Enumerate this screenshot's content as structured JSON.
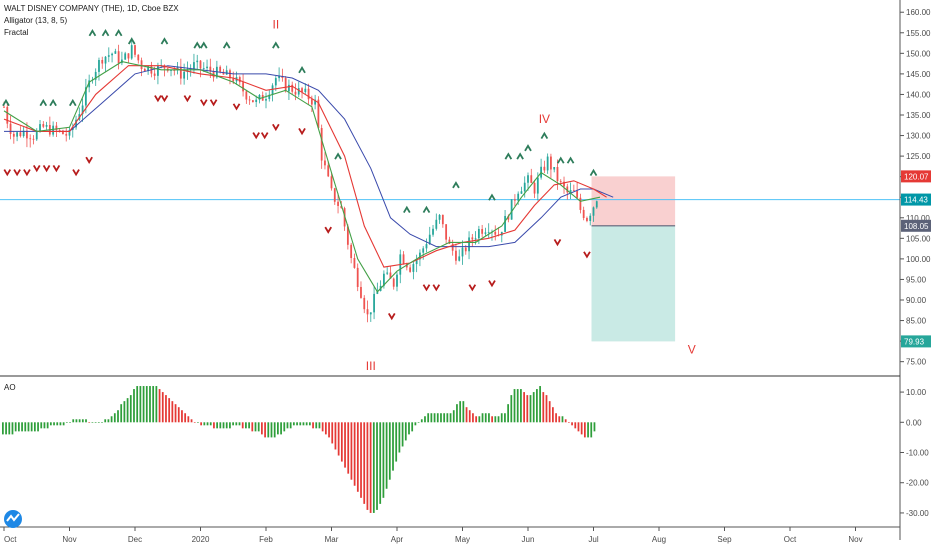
{
  "header": {
    "title": "WALT DISNEY COMPANY (THE), 1D, Cboe BZX",
    "indicator_1": "Alligator (13, 8, 5)",
    "indicator_2": "Fractal"
  },
  "colors": {
    "up": "#26a69a",
    "down": "#ef5350",
    "ao_up": "#2e9e3a",
    "ao_down": "#e53935",
    "jaw": "#3949ab",
    "teeth": "#e53935",
    "lips": "#43a047",
    "stop_zone": "#f8c8c8",
    "target_zone": "#bfe6e1",
    "hline": "#4fc3f7",
    "fractal_up": "#2e7d5b",
    "fractal_down": "#b71c1c"
  },
  "chart_data": [
    {
      "type": "candlestick",
      "title": "WALT DISNEY COMPANY (THE), 1D, Cboe BZX",
      "xlabel": "",
      "ylabel": "",
      "ylim": [
        72,
        162
      ],
      "y_ticks": [
        "160.00",
        "155.00",
        "150.00",
        "145.00",
        "140.00",
        "135.00",
        "130.00",
        "125.00",
        "120.00",
        "115.00",
        "110.00",
        "105.00",
        "100.00",
        "95.00",
        "90.00",
        "85.00",
        "80.00",
        "75.00"
      ],
      "x_ticks": [
        "Oct",
        "Nov",
        "Dec",
        "2020",
        "Feb",
        "Mar",
        "Apr",
        "May",
        "Jun",
        "Jul",
        "Aug",
        "Sep",
        "Oct",
        "Nov"
      ],
      "grid": false,
      "series_close": [
        {
          "t": 0,
          "v": 137
        },
        {
          "t": 0.06,
          "v": 133
        },
        {
          "t": 0.15,
          "v": 130
        },
        {
          "t": 0.3,
          "v": 131
        },
        {
          "t": 0.45,
          "v": 130
        },
        {
          "t": 0.6,
          "v": 132
        },
        {
          "t": 0.8,
          "v": 131
        },
        {
          "t": 1.0,
          "v": 130
        },
        {
          "t": 1.2,
          "v": 138
        },
        {
          "t": 1.35,
          "v": 145
        },
        {
          "t": 1.5,
          "v": 149
        },
        {
          "t": 1.65,
          "v": 150
        },
        {
          "t": 1.8,
          "v": 148
        },
        {
          "t": 1.95,
          "v": 151
        },
        {
          "t": 2.1,
          "v": 147
        },
        {
          "t": 2.3,
          "v": 146
        },
        {
          "t": 2.5,
          "v": 147
        },
        {
          "t": 2.7,
          "v": 145
        },
        {
          "t": 2.9,
          "v": 147
        },
        {
          "t": 3.1,
          "v": 146
        },
        {
          "t": 3.3,
          "v": 145
        },
        {
          "t": 3.5,
          "v": 144
        },
        {
          "t": 3.7,
          "v": 140
        },
        {
          "t": 3.85,
          "v": 138
        },
        {
          "t": 4.0,
          "v": 140
        },
        {
          "t": 4.15,
          "v": 144
        },
        {
          "t": 4.3,
          "v": 142
        },
        {
          "t": 4.45,
          "v": 141
        },
        {
          "t": 4.6,
          "v": 140
        },
        {
          "t": 4.75,
          "v": 138
        },
        {
          "t": 4.85,
          "v": 125
        },
        {
          "t": 5.0,
          "v": 116
        },
        {
          "t": 5.15,
          "v": 112
        },
        {
          "t": 5.3,
          "v": 100
        },
        {
          "t": 5.45,
          "v": 92
        },
        {
          "t": 5.55,
          "v": 86
        },
        {
          "t": 5.65,
          "v": 90
        },
        {
          "t": 5.8,
          "v": 96
        },
        {
          "t": 5.95,
          "v": 94
        },
        {
          "t": 6.05,
          "v": 101
        },
        {
          "t": 6.2,
          "v": 98
        },
        {
          "t": 6.35,
          "v": 101
        },
        {
          "t": 6.5,
          "v": 106
        },
        {
          "t": 6.65,
          "v": 110
        },
        {
          "t": 6.8,
          "v": 103
        },
        {
          "t": 6.95,
          "v": 100
        },
        {
          "t": 7.1,
          "v": 104
        },
        {
          "t": 7.25,
          "v": 107
        },
        {
          "t": 7.4,
          "v": 108
        },
        {
          "t": 7.55,
          "v": 106
        },
        {
          "t": 7.7,
          "v": 111
        },
        {
          "t": 7.85,
          "v": 117
        },
        {
          "t": 8.0,
          "v": 119
        },
        {
          "t": 8.1,
          "v": 117
        },
        {
          "t": 8.2,
          "v": 121
        },
        {
          "t": 8.3,
          "v": 124
        },
        {
          "t": 8.4,
          "v": 121
        },
        {
          "t": 8.5,
          "v": 118
        },
        {
          "t": 8.6,
          "v": 116
        },
        {
          "t": 8.7,
          "v": 116
        },
        {
          "t": 8.8,
          "v": 112
        },
        {
          "t": 8.9,
          "v": 110
        },
        {
          "t": 9.0,
          "v": 113
        },
        {
          "t": 9.05,
          "v": 115
        }
      ],
      "alligator": {
        "jaw": [
          {
            "t": 0,
            "v": 131
          },
          {
            "t": 0.5,
            "v": 131
          },
          {
            "t": 1.0,
            "v": 131
          },
          {
            "t": 1.5,
            "v": 138
          },
          {
            "t": 2.0,
            "v": 145
          },
          {
            "t": 2.5,
            "v": 147
          },
          {
            "t": 3.0,
            "v": 146
          },
          {
            "t": 3.5,
            "v": 145
          },
          {
            "t": 4.0,
            "v": 145
          },
          {
            "t": 4.4,
            "v": 144
          },
          {
            "t": 4.8,
            "v": 141
          },
          {
            "t": 5.2,
            "v": 134
          },
          {
            "t": 5.6,
            "v": 122
          },
          {
            "t": 5.9,
            "v": 110
          },
          {
            "t": 6.2,
            "v": 106
          },
          {
            "t": 6.6,
            "v": 103
          },
          {
            "t": 7.0,
            "v": 103
          },
          {
            "t": 7.4,
            "v": 103
          },
          {
            "t": 7.8,
            "v": 104
          },
          {
            "t": 8.2,
            "v": 110
          },
          {
            "t": 8.5,
            "v": 115
          },
          {
            "t": 8.8,
            "v": 117
          },
          {
            "t": 9.0,
            "v": 117
          },
          {
            "t": 9.3,
            "v": 115
          }
        ],
        "teeth": [
          {
            "t": 0,
            "v": 134
          },
          {
            "t": 0.5,
            "v": 131
          },
          {
            "t": 1.0,
            "v": 131
          },
          {
            "t": 1.4,
            "v": 140
          },
          {
            "t": 1.9,
            "v": 147
          },
          {
            "t": 2.4,
            "v": 147
          },
          {
            "t": 3.0,
            "v": 145
          },
          {
            "t": 3.5,
            "v": 144
          },
          {
            "t": 4.0,
            "v": 141
          },
          {
            "t": 4.4,
            "v": 142
          },
          {
            "t": 4.8,
            "v": 138
          },
          {
            "t": 5.2,
            "v": 125
          },
          {
            "t": 5.5,
            "v": 108
          },
          {
            "t": 5.8,
            "v": 98
          },
          {
            "t": 6.2,
            "v": 99
          },
          {
            "t": 6.6,
            "v": 102
          },
          {
            "t": 7.0,
            "v": 104
          },
          {
            "t": 7.4,
            "v": 105
          },
          {
            "t": 7.8,
            "v": 107
          },
          {
            "t": 8.1,
            "v": 113
          },
          {
            "t": 8.4,
            "v": 118
          },
          {
            "t": 8.7,
            "v": 119
          },
          {
            "t": 9.0,
            "v": 117
          },
          {
            "t": 9.2,
            "v": 115
          }
        ],
        "lips": [
          {
            "t": 0,
            "v": 136
          },
          {
            "t": 0.5,
            "v": 131
          },
          {
            "t": 1.0,
            "v": 132
          },
          {
            "t": 1.3,
            "v": 143
          },
          {
            "t": 1.8,
            "v": 148
          },
          {
            "t": 2.4,
            "v": 146
          },
          {
            "t": 3.0,
            "v": 146
          },
          {
            "t": 3.5,
            "v": 143
          },
          {
            "t": 3.9,
            "v": 139
          },
          {
            "t": 4.3,
            "v": 141
          },
          {
            "t": 4.7,
            "v": 137
          },
          {
            "t": 5.0,
            "v": 121
          },
          {
            "t": 5.4,
            "v": 100
          },
          {
            "t": 5.7,
            "v": 92
          },
          {
            "t": 6.0,
            "v": 97
          },
          {
            "t": 6.4,
            "v": 101
          },
          {
            "t": 6.8,
            "v": 104
          },
          {
            "t": 7.2,
            "v": 104
          },
          {
            "t": 7.6,
            "v": 108
          },
          {
            "t": 7.9,
            "v": 115
          },
          {
            "t": 8.2,
            "v": 121
          },
          {
            "t": 8.5,
            "v": 118
          },
          {
            "t": 8.8,
            "v": 114
          },
          {
            "t": 9.1,
            "v": 115
          }
        ]
      },
      "horizontal_line": 114.43,
      "position": {
        "entry": 108.05,
        "stop": 120.07,
        "target": 79.93,
        "t_start": 9.0,
        "t_end": 10.2
      },
      "price_tags": [
        {
          "value": 120.07,
          "label": "120.07",
          "color": "#e53935"
        },
        {
          "value": 114.43,
          "label": "114.43",
          "color": "#0097a7"
        },
        {
          "value": 108.05,
          "label": "108.05",
          "color": "#5c6278"
        },
        {
          "value": 79.93,
          "label": "79.93",
          "color": "#26a69a"
        }
      ],
      "waves": [
        {
          "label": "II",
          "t": 4.15,
          "v": 156
        },
        {
          "label": "IV",
          "t": 8.25,
          "v": 133
        },
        {
          "label": "V",
          "t": 10.5,
          "v": 77
        },
        {
          "label": "III",
          "t": 5.6,
          "v": 73
        }
      ],
      "fractals_up": [
        {
          "t": 0.03,
          "v": 138
        },
        {
          "t": 0.6,
          "v": 138
        },
        {
          "t": 0.75,
          "v": 138
        },
        {
          "t": 1.05,
          "v": 138
        },
        {
          "t": 1.35,
          "v": 155
        },
        {
          "t": 1.55,
          "v": 155
        },
        {
          "t": 1.75,
          "v": 155
        },
        {
          "t": 1.95,
          "v": 153
        },
        {
          "t": 2.45,
          "v": 153
        },
        {
          "t": 2.95,
          "v": 152
        },
        {
          "t": 3.05,
          "v": 152
        },
        {
          "t": 3.4,
          "v": 152
        },
        {
          "t": 4.15,
          "v": 152
        },
        {
          "t": 4.55,
          "v": 146
        },
        {
          "t": 5.1,
          "v": 125
        },
        {
          "t": 6.15,
          "v": 112
        },
        {
          "t": 6.45,
          "v": 112
        },
        {
          "t": 6.9,
          "v": 118
        },
        {
          "t": 7.45,
          "v": 115
        },
        {
          "t": 7.7,
          "v": 125
        },
        {
          "t": 7.88,
          "v": 125
        },
        {
          "t": 8.0,
          "v": 127
        },
        {
          "t": 8.25,
          "v": 130
        },
        {
          "t": 8.5,
          "v": 124
        },
        {
          "t": 8.65,
          "v": 124
        },
        {
          "t": 9.0,
          "v": 121
        }
      ],
      "fractals_down": [
        {
          "t": 0.05,
          "v": 121
        },
        {
          "t": 0.2,
          "v": 121
        },
        {
          "t": 0.35,
          "v": 121
        },
        {
          "t": 0.5,
          "v": 122
        },
        {
          "t": 0.65,
          "v": 122
        },
        {
          "t": 0.8,
          "v": 122
        },
        {
          "t": 1.1,
          "v": 121
        },
        {
          "t": 1.3,
          "v": 124
        },
        {
          "t": 2.35,
          "v": 139
        },
        {
          "t": 2.45,
          "v": 139
        },
        {
          "t": 2.8,
          "v": 139
        },
        {
          "t": 3.05,
          "v": 138
        },
        {
          "t": 3.2,
          "v": 138
        },
        {
          "t": 3.55,
          "v": 137
        },
        {
          "t": 3.85,
          "v": 130
        },
        {
          "t": 3.98,
          "v": 130
        },
        {
          "t": 4.15,
          "v": 132
        },
        {
          "t": 4.55,
          "v": 131
        },
        {
          "t": 4.95,
          "v": 107
        },
        {
          "t": 5.92,
          "v": 86
        },
        {
          "t": 6.45,
          "v": 93
        },
        {
          "t": 6.6,
          "v": 93
        },
        {
          "t": 7.15,
          "v": 93
        },
        {
          "t": 7.45,
          "v": 94
        },
        {
          "t": 8.45,
          "v": 104
        },
        {
          "t": 8.9,
          "v": 101
        }
      ]
    },
    {
      "type": "bar",
      "title": "AO",
      "xlabel": "",
      "ylabel": "",
      "ylim": [
        -33,
        14
      ],
      "y_ticks": [
        "10.00",
        "0.00",
        "-10.00",
        "-20.00",
        "-30.00"
      ],
      "values": [
        -4,
        -4,
        -4,
        -4,
        -3,
        -3,
        -3,
        -3,
        -3,
        -3,
        -3,
        -3,
        -2,
        -2,
        -2,
        -1,
        -1,
        -1,
        -1,
        -1,
        0,
        0,
        1,
        1,
        1,
        1,
        1,
        0,
        0,
        0,
        0,
        0,
        1,
        1,
        2,
        3,
        4,
        6,
        7,
        8,
        9,
        11,
        12,
        12,
        12,
        12,
        12,
        12,
        12,
        11,
        10,
        9,
        8,
        7,
        6,
        5,
        4,
        3,
        2,
        1,
        0,
        0,
        -1,
        -1,
        -1,
        -1,
        -2,
        -2,
        -2,
        -2,
        -2,
        -2,
        -1,
        -1,
        -1,
        -2,
        -2,
        -2,
        -3,
        -3,
        -3,
        -4,
        -5,
        -5,
        -5,
        -5,
        -4,
        -4,
        -3,
        -2,
        -2,
        -1,
        -1,
        -1,
        -1,
        -1,
        -1,
        -2,
        -2,
        -2,
        -3,
        -4,
        -5,
        -7,
        -9,
        -11,
        -13,
        -15,
        -17,
        -19,
        -21,
        -23,
        -25,
        -27,
        -29,
        -30,
        -30,
        -29,
        -27,
        -25,
        -22,
        -19,
        -16,
        -13,
        -10,
        -8,
        -6,
        -4,
        -3,
        -1,
        0,
        1,
        2,
        3,
        3,
        3,
        3,
        3,
        3,
        3,
        3,
        4,
        6,
        7,
        7,
        5,
        4,
        3,
        2,
        2,
        3,
        3,
        3,
        2,
        2,
        2,
        3,
        3,
        6,
        9,
        11,
        11,
        11,
        10,
        9,
        9,
        10,
        11,
        12,
        10,
        9,
        7,
        5,
        3,
        2,
        2,
        1,
        0,
        -1,
        -2,
        -3,
        -4,
        -5,
        -5,
        -5,
        -3
      ]
    }
  ]
}
